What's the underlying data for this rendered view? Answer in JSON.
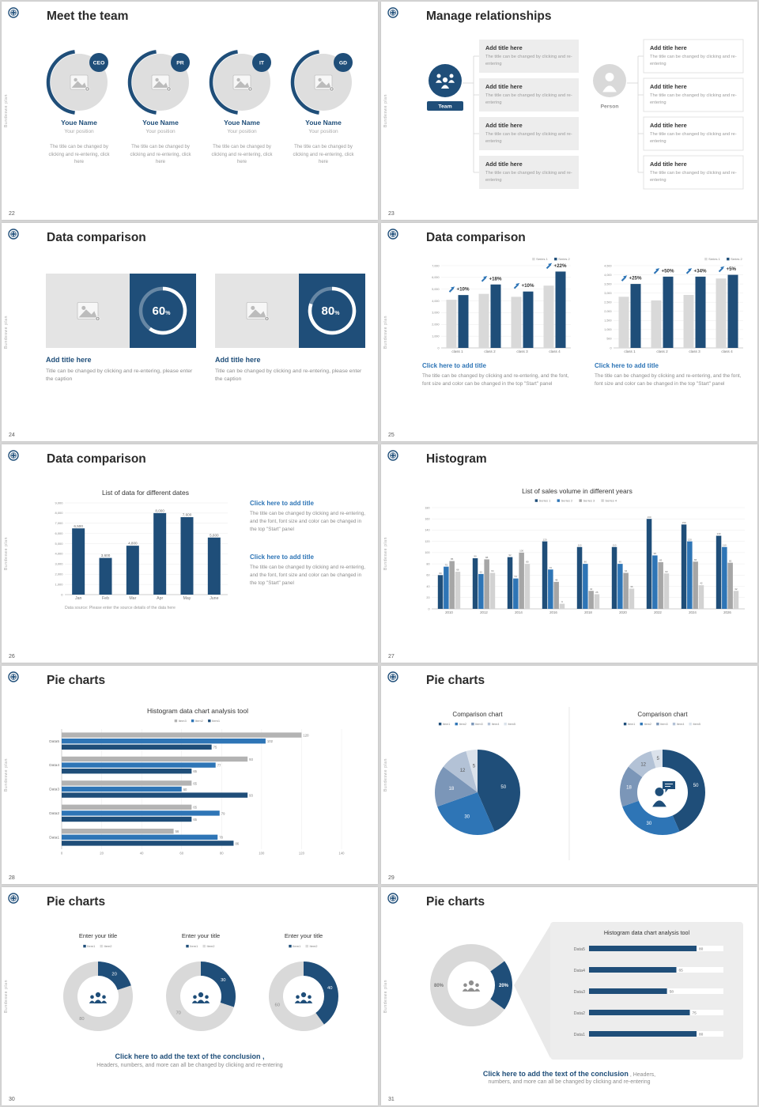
{
  "common": {
    "sidebar_text": "Bundeswe plan",
    "colors": {
      "navy": "#1f4e79",
      "blue": "#2e75b6",
      "gray": "#a6a6a6",
      "light_gray": "#d9d9d9",
      "text_dark": "#2b2b2b",
      "text_gray": "#8c8c8c"
    }
  },
  "slides": {
    "s22": {
      "number": "22",
      "title": "Meet the team",
      "members": [
        {
          "badge": "CEO",
          "name": "Youe Name",
          "position": "Your position",
          "desc": "The title can be changed by clicking and re-entering, click here"
        },
        {
          "badge": "PR",
          "name": "Youe Name",
          "position": "Your position",
          "desc": "The title can be changed by clicking and re-entering, click here"
        },
        {
          "badge": "IT",
          "name": "Youe Name",
          "position": "Your position",
          "desc": "The title can be changed by clicking and re-entering, click here"
        },
        {
          "badge": "GD",
          "name": "Youe Name",
          "position": "Your position",
          "desc": "The title can be changed by clicking and re-entering, click here"
        }
      ]
    },
    "s23": {
      "number": "23",
      "title": "Manage relationships",
      "team_label": "Team",
      "person_label": "Person",
      "box_title": "Add title here",
      "box_text": "The title can be changed by clicking and re-entering"
    },
    "s24": {
      "number": "24",
      "title": "Data comparison",
      "caption_title": "Add title here",
      "caption_text": "Title can be changed by clicking and re-entering, please enter the caption"
    },
    "s25": {
      "number": "25",
      "title": "Data comparison",
      "caption_title": "Click here to add title",
      "caption_text": "The title can be changed by clicking and re-entering, and the font, font size and color can be changed in the top \"Start\" panel"
    },
    "s26": {
      "number": "26",
      "title": "Data comparison",
      "block_title": "Click here to add title",
      "block_text": "The title can be changed by clicking and re-entering, and the font, font size and color can be changed in the top \"Start\" panel"
    },
    "s27": {
      "number": "27",
      "title": "Histogram"
    },
    "s28": {
      "number": "28",
      "title": "Pie charts"
    },
    "s29": {
      "number": "29",
      "title": "Pie charts"
    },
    "s30": {
      "number": "30",
      "title": "Pie charts",
      "conclusion_bold": "Click here to add the text of the conclusion",
      "conclusion_tail": " ,",
      "conclusion_line2": "Headers, numbers, and more can all be changed by clicking and re-entering"
    },
    "s31": {
      "number": "31",
      "title": "Pie charts",
      "conclusion_bold": "Click here to add the text of the conclusion",
      "conclusion_tail": " ,  Headers,",
      "conclusion_line2": "numbers, and more can all be changed by clicking and re-entering"
    }
  },
  "chart_data": [
    {
      "id": "rings24",
      "slide": "24",
      "type": "pie",
      "title": "progress rings",
      "rings": [
        {
          "percent": 60
        },
        {
          "percent": 80
        }
      ],
      "colors": [
        "#1f4e79",
        "#ffffff"
      ]
    },
    {
      "id": "bar25L",
      "slide": "25",
      "type": "bar",
      "title": "Click here to add title",
      "categories": [
        "class 1",
        "class 2",
        "class 3",
        "class 4"
      ],
      "series": [
        {
          "name": "Series 1",
          "values": [
            4100,
            4600,
            4350,
            5300
          ]
        },
        {
          "name": "Series 2",
          "values": [
            4500,
            5400,
            4800,
            6500
          ]
        }
      ],
      "callouts": [
        "+10%",
        "+18%",
        "+10%",
        "+22%"
      ],
      "ylim": [
        0,
        7000
      ],
      "ytick": 1000,
      "grid": true,
      "legend_position": "top-right",
      "colors": [
        "#d9d9d9",
        "#1f4e79"
      ]
    },
    {
      "id": "bar25R",
      "slide": "25",
      "type": "bar",
      "title": "Click here to add title",
      "categories": [
        "class 1",
        "class 2",
        "class 3",
        "class 4"
      ],
      "series": [
        {
          "name": "Series 1",
          "values": [
            2800,
            2600,
            2900,
            3800
          ]
        },
        {
          "name": "Series 2",
          "values": [
            3500,
            3900,
            3900,
            4000
          ]
        }
      ],
      "callouts": [
        "+25%",
        "+50%",
        "+34%",
        "+5%"
      ],
      "ylim": [
        0,
        4500
      ],
      "ytick": 500,
      "grid": true,
      "legend_position": "top-right",
      "colors": [
        "#d9d9d9",
        "#1f4e79"
      ]
    },
    {
      "id": "bar26",
      "slide": "26",
      "type": "bar",
      "title": "List of data for different dates",
      "categories": [
        "Jan",
        "Feb",
        "Mar",
        "Apr",
        "May",
        "June"
      ],
      "values": [
        6500,
        3600,
        4800,
        8000,
        7600,
        5600
      ],
      "ylim": [
        0,
        9000
      ],
      "ytick": 1000,
      "grid": true,
      "source_note": "Data source: Please enter the source details of the data here",
      "colors": [
        "#1f4e79"
      ]
    },
    {
      "id": "bar27",
      "slide": "27",
      "type": "bar",
      "title": "List of sales volume in different years",
      "categories": [
        "2010",
        "2012",
        "2014",
        "2016",
        "2018",
        "2020",
        "2022",
        "2024",
        "2026"
      ],
      "series": [
        {
          "name": "Series 1",
          "values": [
            60,
            90,
            92,
            120,
            110,
            110,
            160,
            150,
            130
          ]
        },
        {
          "name": "Series 2",
          "values": [
            75,
            62,
            54,
            70,
            80,
            80,
            95,
            120,
            110
          ]
        },
        {
          "name": "Series 3",
          "values": [
            85,
            88,
            100,
            48,
            32,
            64,
            83,
            84,
            82
          ]
        },
        {
          "name": "Series 4",
          "values": [
            66,
            64,
            80,
            9,
            26,
            36,
            63,
            42,
            32
          ]
        }
      ],
      "ylim": [
        0,
        180
      ],
      "ytick": 20,
      "grid": true,
      "legend_position": "top",
      "colors": [
        "#1f4e79",
        "#2e75b6",
        "#a6a6a6",
        "#d2d2d2"
      ]
    },
    {
      "id": "hbar28",
      "slide": "28",
      "type": "bar",
      "orientation": "horizontal",
      "title": "Histogram data chart analysis tool",
      "categories": [
        "Data1",
        "Data2",
        "Data3",
        "Data4",
        "Data5"
      ],
      "series": [
        {
          "name": "Item1",
          "values": [
            86,
            65,
            93,
            65,
            75
          ]
        },
        {
          "name": "Item2",
          "values": [
            78,
            79,
            60,
            77,
            102
          ]
        },
        {
          "name": "Item3",
          "values": [
            56,
            65,
            65,
            93,
            120
          ]
        }
      ],
      "xlim": [
        0,
        140
      ],
      "xtick": 20,
      "grid": true,
      "legend_position": "top",
      "colors": [
        "#1f4e79",
        "#2e75b6",
        "#b3b3b3"
      ]
    },
    {
      "id": "pie29L",
      "slide": "29",
      "type": "pie",
      "variant": "pie",
      "title": "Comparison chart",
      "labels": [
        "Item1",
        "Item2",
        "Item3",
        "Item4",
        "Item5"
      ],
      "values": [
        50,
        30,
        18,
        12,
        5
      ],
      "legend_position": "top",
      "colors": [
        "#1f4e79",
        "#2e75b6",
        "#7b96b8",
        "#b3c2d6",
        "#dbe2eb"
      ]
    },
    {
      "id": "pie29R",
      "slide": "29",
      "type": "pie",
      "variant": "donut",
      "title": "Comparison chart",
      "labels": [
        "Item1",
        "Item2",
        "Item3",
        "Item4",
        "Item5"
      ],
      "values": [
        50,
        30,
        18,
        12,
        5
      ],
      "legend_position": "top",
      "colors": [
        "#1f4e79",
        "#2e75b6",
        "#7b96b8",
        "#b3c2d6",
        "#dbe2eb"
      ]
    },
    {
      "id": "donuts30",
      "slide": "30",
      "type": "pie",
      "variant": "donut",
      "title": "Enter your title",
      "labels": [
        "Item1",
        "Item2"
      ],
      "charts": [
        {
          "values": [
            20,
            80
          ]
        },
        {
          "values": [
            30,
            70
          ]
        },
        {
          "values": [
            40,
            60
          ]
        }
      ],
      "colors": [
        "#1f4e79",
        "#d9d9d9"
      ]
    },
    {
      "id": "donut31",
      "slide": "31",
      "type": "pie",
      "variant": "donut",
      "labels": [
        "Item1",
        "Item2"
      ],
      "values": [
        20,
        80
      ],
      "value_labels": [
        "20%",
        "80%"
      ],
      "colors": [
        "#1f4e79",
        "#d9d9d9"
      ]
    },
    {
      "id": "hbar31",
      "slide": "31",
      "type": "bar",
      "orientation": "horizontal",
      "title": "Histogram data chart analysis tool",
      "categories": [
        "Data1",
        "Data2",
        "Data3",
        "Data4",
        "Data5"
      ],
      "values": [
        80,
        75,
        58,
        65,
        80
      ],
      "xlim": [
        0,
        100
      ],
      "colors": [
        "#1f4e79"
      ]
    }
  ]
}
